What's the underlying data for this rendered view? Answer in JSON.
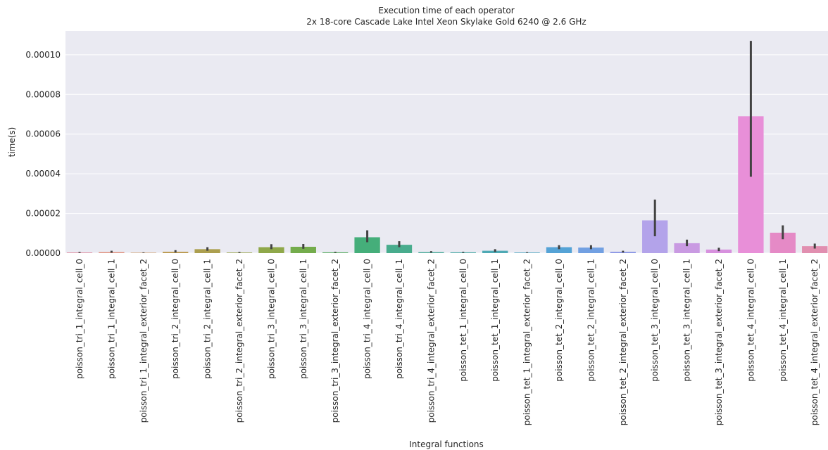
{
  "chart_data": {
    "type": "bar",
    "title": "Execution time of each operator",
    "subtitle": "2x 18-core Cascade Lake Intel Xeon Skylake Gold 6240 @ 2.6 GHz",
    "x_label": "Integral functions",
    "y_label": "time(s)",
    "categories": [
      "poisson_tri_1_integral_cell_0",
      "poisson_tri_1_integral_cell_1",
      "poisson_tri_1_integral_exterior_facet_2",
      "poisson_tri_2_integral_cell_0",
      "poisson_tri_2_integral_cell_1",
      "poisson_tri_2_integral_exterior_facet_2",
      "poisson_tri_3_integral_cell_0",
      "poisson_tri_3_integral_cell_1",
      "poisson_tri_3_integral_exterior_facet_2",
      "poisson_tri_4_integral_cell_0",
      "poisson_tri_4_integral_cell_1",
      "poisson_tri_4_integral_exterior_facet_2",
      "poisson_tet_1_integral_cell_0",
      "poisson_tet_1_integral_cell_1",
      "poisson_tet_1_integral_exterior_facet_2",
      "poisson_tet_2_integral_cell_0",
      "poisson_tet_2_integral_cell_1",
      "poisson_tet_2_integral_exterior_facet_2",
      "poisson_tet_3_integral_cell_0",
      "poisson_tet_3_integral_cell_1",
      "poisson_tet_3_integral_exterior_facet_2",
      "poisson_tet_4_integral_cell_0",
      "poisson_tet_4_integral_cell_1",
      "poisson_tet_4_integral_exterior_facet_2"
    ],
    "values": [
      3e-07,
      5e-07,
      2e-07,
      7e-07,
      2e-06,
      3e-07,
      3e-06,
      3.2e-06,
      4e-07,
      8e-06,
      4.2e-06,
      5e-07,
      4e-07,
      1.2e-06,
      3e-07,
      3e-06,
      2.8e-06,
      7e-07,
      1.65e-05,
      5e-06,
      1.8e-06,
      6.9e-05,
      1.03e-05,
      3.5e-06
    ],
    "ci_low": [
      1e-07,
      2e-07,
      1e-07,
      3e-07,
      1.2e-06,
      1e-07,
      2e-06,
      2.2e-06,
      2e-07,
      5.5e-06,
      3e-06,
      2e-07,
      2e-07,
      6e-07,
      1e-07,
      2e-06,
      2e-06,
      3e-07,
      8.5e-06,
      3.5e-06,
      1e-06,
      3.85e-05,
      7e-06,
      2.3e-06
    ],
    "ci_high": [
      6e-07,
      1.2e-06,
      4e-07,
      1.5e-06,
      3e-06,
      6e-07,
      4.5e-06,
      4.6e-06,
      7e-07,
      1.15e-05,
      6e-06,
      1e-06,
      7e-07,
      2e-06,
      5e-07,
      4e-06,
      4e-06,
      1.2e-06,
      2.7e-05,
      6.8e-06,
      2.7e-06,
      0.000107,
      1.4e-05,
      4.8e-06
    ],
    "colors": [
      "#e0869a",
      "#e18f7c",
      "#d1965a",
      "#bd9d54",
      "#ac9f4f",
      "#9ba54c",
      "#8fa84a",
      "#74ac4c",
      "#5aae64",
      "#45ae7a",
      "#48ac8d",
      "#4aab9a",
      "#4caaa6",
      "#4ea9b4",
      "#50a7c2",
      "#55a3d6",
      "#72a0e2",
      "#8f9be6",
      "#b3a3ea",
      "#c99ae2",
      "#d791de",
      "#e88fd8",
      "#e58ac6",
      "#e18fb0"
    ],
    "ylim": [
      0,
      0.000112
    ],
    "yticks": [
      {
        "value": 0,
        "label": "0.00000"
      },
      {
        "value": 2e-05,
        "label": "0.00002"
      },
      {
        "value": 4e-05,
        "label": "0.00004"
      },
      {
        "value": 6e-05,
        "label": "0.00006"
      },
      {
        "value": 8e-05,
        "label": "0.00008"
      },
      {
        "value": 0.0001,
        "label": "0.00010"
      }
    ],
    "grid": true
  }
}
